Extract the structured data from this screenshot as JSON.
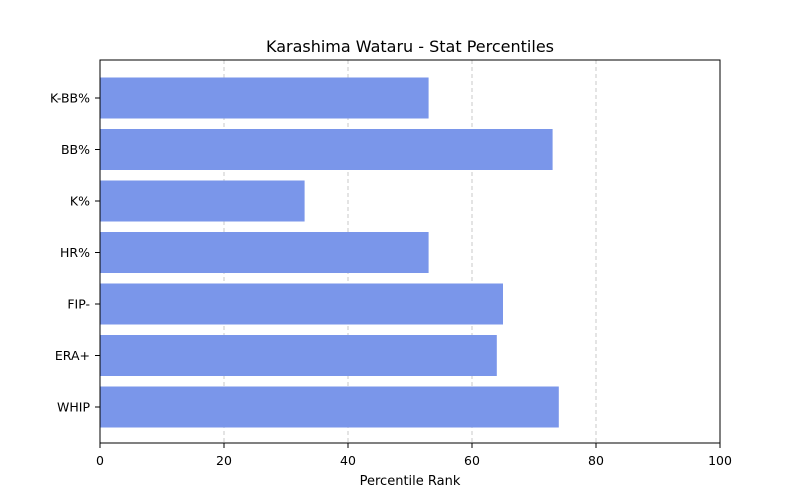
{
  "chart_data": {
    "type": "bar",
    "orientation": "horizontal",
    "title": "Karashima Wataru - Stat Percentiles",
    "xlabel": "Percentile Rank",
    "ylabel": "",
    "xlim": [
      0,
      100
    ],
    "xticks": [
      0,
      20,
      40,
      60,
      80,
      100
    ],
    "grid": "x-dashed",
    "bar_color": "#7a96ea",
    "categories": [
      "K-BB%",
      "BB%",
      "K%",
      "HR%",
      "FIP-",
      "ERA+",
      "WHIP"
    ],
    "values": [
      53,
      73,
      33,
      53,
      65,
      64,
      74
    ]
  }
}
